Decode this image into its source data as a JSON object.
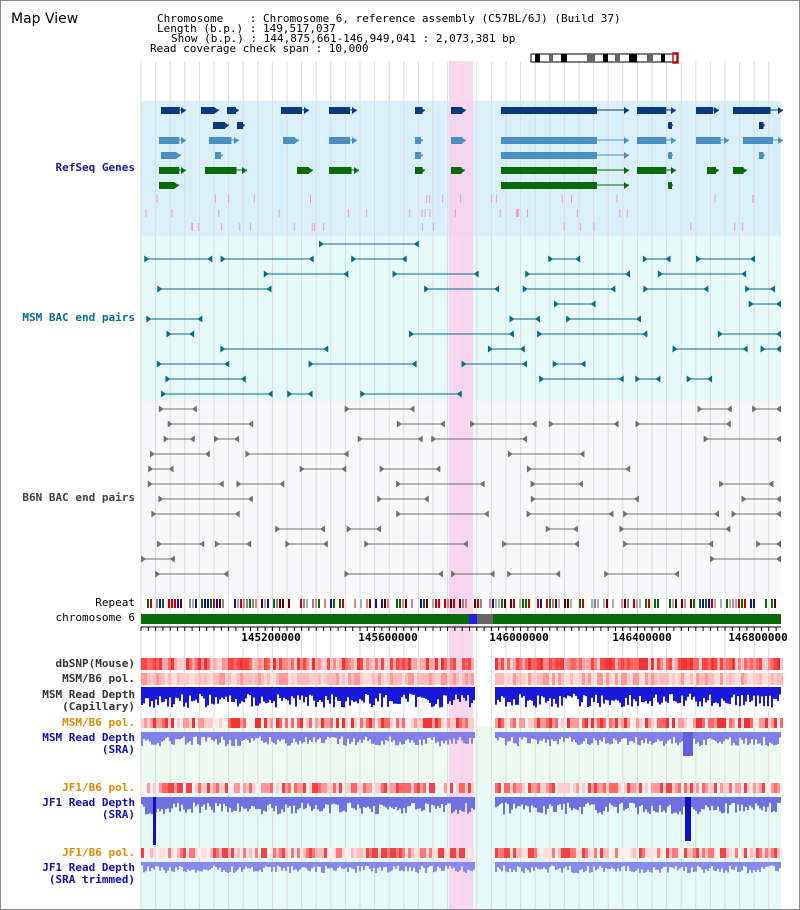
{
  "map": {
    "title": "Map View",
    "chromosome_line": "Chromosome    : Chromosome 6, reference assembly (C57BL/6J) (Build 37)",
    "length_line": "Length (b.p.) : 149,517,037",
    "show_line": "Show (b.p.) : 144,875,661-146,949,041 : 2,073,381 bp",
    "coverage_line": "Read coverage check span : 10,000"
  },
  "tracks": {
    "refseq": "RefSeq Genes",
    "msm_bac": "MSM BAC end pairs",
    "b6n_bac": "B6N BAC end pairs",
    "repeat": "Repeat",
    "chromosome": "chromosome 6",
    "dbsnp": "dbSNP(Mouse)",
    "msm_b6_pol": "MSM/B6 pol.",
    "msm_depth_cap_1": "MSM Read Depth",
    "msm_depth_cap_2": "(Capillary)",
    "msm_b6_pol_2": "MSM/B6 pol.",
    "msm_depth_sra_1": "MSM Read Depth",
    "msm_depth_sra_2": "(SRA)",
    "jf1_b6_pol": "JF1/B6 pol.",
    "jf1_depth_sra_1": "JF1 Read Depth",
    "jf1_depth_sra_2": "(SRA)",
    "jf1_b6_pol_2": "JF1/B6 pol.",
    "jf1_depth_trim_1": "JF1 Read Depth",
    "jf1_depth_trim_2": "(SRA trimmed)"
  },
  "axis": {
    "ticks": [
      "145200000",
      "145600000",
      "146000000",
      "146400000",
      "146800000"
    ]
  },
  "colors": {
    "refseq_bg": "#d9f0fa",
    "msm_bg": "#e6fafa",
    "b6n_bg": "#f8f8fa",
    "highlight": "#f8d0ec",
    "refseq_label": "#1a1aa0",
    "msm_label": "#0a6a8a",
    "b6n_label": "#404040",
    "pol_orange": "#e08a00",
    "depth_blue": "#1010b0",
    "chromosome_green": "#0a6a0a"
  }
}
